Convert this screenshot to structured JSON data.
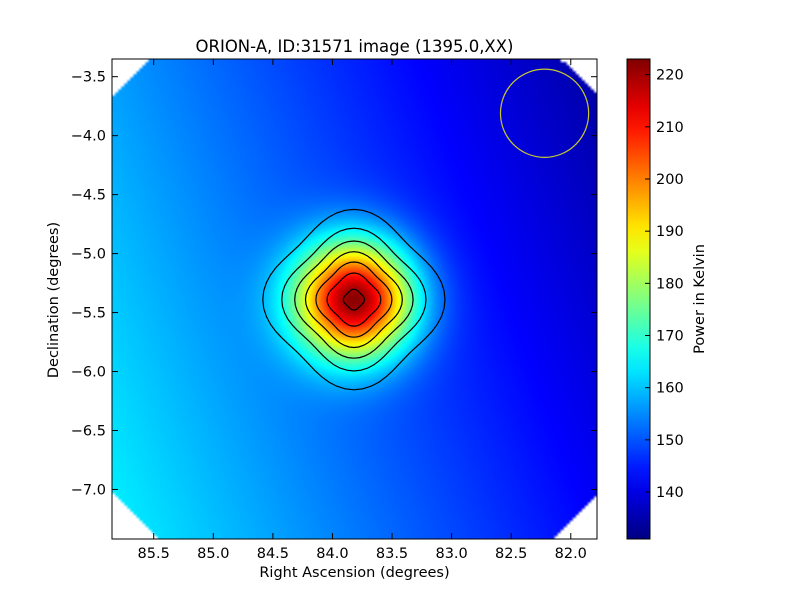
{
  "chart_data": {
    "type": "heatmap",
    "title": "ORION-A, ID:31571 image (1395.0,XX)",
    "xlabel": "Right Ascension (degrees)",
    "ylabel": "Declination (degrees)",
    "xlim": [
      85.85,
      81.78
    ],
    "ylim": [
      -7.42,
      -3.35
    ],
    "x_inverted": true,
    "xticks": [
      85.5,
      85.0,
      84.5,
      84.0,
      83.5,
      83.0,
      82.5,
      82.0
    ],
    "xtick_labels": [
      "85.5",
      "85.0",
      "84.5",
      "84.0",
      "83.5",
      "83.0",
      "82.5",
      "82.0"
    ],
    "yticks": [
      -3.5,
      -4.0,
      -4.5,
      -5.0,
      -5.5,
      -6.0,
      -6.5,
      -7.0
    ],
    "ytick_labels": [
      "−3.5",
      "−4.0",
      "−4.5",
      "−5.0",
      "−5.5",
      "−6.0",
      "−6.5",
      "−7.0"
    ],
    "colormap": "jet",
    "colorbar": {
      "label": "Power in Kelvin",
      "range": [
        131,
        223
      ],
      "ticks": [
        140,
        150,
        160,
        170,
        180,
        190,
        200,
        210,
        220
      ],
      "tick_labels": [
        "140",
        "150",
        "160",
        "170",
        "180",
        "190",
        "200",
        "210",
        "220"
      ]
    },
    "peak": {
      "ra": 83.82,
      "dec": -5.39,
      "value": 222
    },
    "beam_circle": {
      "ra": 82.22,
      "dec": -3.81,
      "radius_deg": 0.37,
      "color": "#c8c832"
    },
    "contour_levels": [
      140,
      150,
      160,
      170,
      180,
      190,
      200,
      210,
      220
    ],
    "grid": false,
    "legend": "none"
  }
}
